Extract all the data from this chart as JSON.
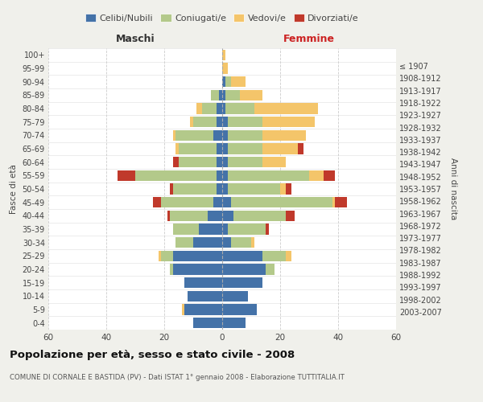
{
  "age_groups": [
    "0-4",
    "5-9",
    "10-14",
    "15-19",
    "20-24",
    "25-29",
    "30-34",
    "35-39",
    "40-44",
    "45-49",
    "50-54",
    "55-59",
    "60-64",
    "65-69",
    "70-74",
    "75-79",
    "80-84",
    "85-89",
    "90-94",
    "95-99",
    "100+"
  ],
  "birth_years": [
    "2003-2007",
    "1998-2002",
    "1993-1997",
    "1988-1992",
    "1983-1987",
    "1978-1982",
    "1973-1977",
    "1968-1972",
    "1963-1967",
    "1958-1962",
    "1953-1957",
    "1948-1952",
    "1943-1947",
    "1938-1942",
    "1933-1937",
    "1928-1932",
    "1923-1927",
    "1918-1922",
    "1913-1917",
    "1908-1912",
    "≤ 1907"
  ],
  "colors": {
    "celibe": "#4472a8",
    "coniugato": "#b3c98a",
    "vedovo": "#f4c56a",
    "divorziato": "#c0392b"
  },
  "maschi": {
    "celibe": [
      10,
      13,
      12,
      13,
      17,
      17,
      10,
      8,
      5,
      3,
      2,
      2,
      2,
      2,
      3,
      2,
      2,
      1,
      0,
      0,
      0
    ],
    "coniugato": [
      0,
      0,
      0,
      0,
      1,
      4,
      6,
      9,
      13,
      18,
      15,
      28,
      13,
      13,
      13,
      8,
      5,
      3,
      0,
      0,
      0
    ],
    "vedovo": [
      0,
      1,
      0,
      0,
      0,
      1,
      0,
      0,
      0,
      0,
      0,
      0,
      0,
      1,
      1,
      1,
      2,
      0,
      0,
      0,
      0
    ],
    "divorziato": [
      0,
      0,
      0,
      0,
      0,
      0,
      0,
      0,
      1,
      3,
      1,
      6,
      2,
      0,
      0,
      0,
      0,
      0,
      0,
      0,
      0
    ]
  },
  "femmine": {
    "nubile": [
      8,
      12,
      9,
      14,
      15,
      14,
      3,
      2,
      4,
      3,
      2,
      2,
      2,
      2,
      2,
      2,
      1,
      1,
      1,
      0,
      0
    ],
    "coniugata": [
      0,
      0,
      0,
      0,
      3,
      8,
      7,
      13,
      18,
      35,
      18,
      28,
      12,
      12,
      12,
      12,
      10,
      5,
      2,
      0,
      0
    ],
    "vedova": [
      0,
      0,
      0,
      0,
      0,
      2,
      1,
      0,
      0,
      1,
      2,
      5,
      8,
      12,
      15,
      18,
      22,
      8,
      5,
      2,
      1
    ],
    "divorziata": [
      0,
      0,
      0,
      0,
      0,
      0,
      0,
      1,
      3,
      4,
      2,
      4,
      0,
      2,
      0,
      0,
      0,
      0,
      0,
      0,
      0
    ]
  },
  "xlim": 60,
  "title": "Popolazione per età, sesso e stato civile - 2008",
  "subtitle": "COMUNE DI CORNALE E BASTIDA (PV) - Dati ISTAT 1° gennaio 2008 - Elaborazione TUTTITALIA.IT",
  "xlabel_left": "Maschi",
  "xlabel_right": "Femmine",
  "ylabel_left": "Fasce di età",
  "ylabel_right": "Anni di nascita",
  "legend_labels": [
    "Celibi/Nubili",
    "Coniugati/e",
    "Vedovi/e",
    "Divorziati/e"
  ],
  "background_color": "#f0f0eb",
  "plot_bg": "#ffffff"
}
